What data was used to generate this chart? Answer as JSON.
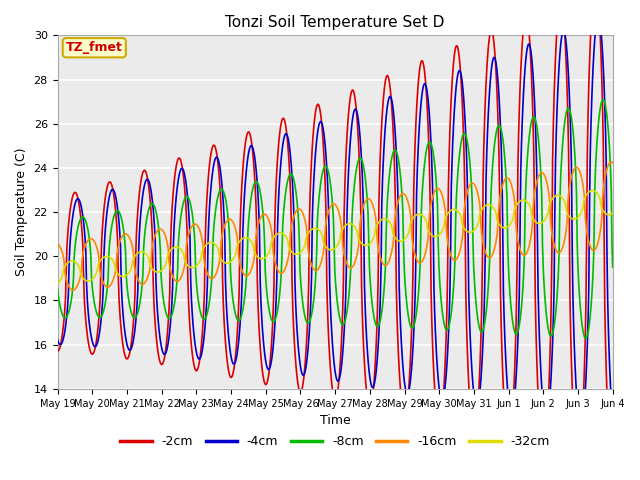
{
  "title": "Tonzi Soil Temperature Set D",
  "xlabel": "Time",
  "ylabel": "Soil Temperature (C)",
  "ylim": [
    14,
    30
  ],
  "yticks": [
    14,
    16,
    18,
    20,
    22,
    24,
    26,
    28,
    30
  ],
  "annotation_text": "TZ_fmet",
  "annotation_bg": "#ffffcc",
  "annotation_border": "#ccaa00",
  "annotation_text_color": "#cc0000",
  "line_colors": {
    "-2cm": "#dd0000",
    "-4cm": "#0000cc",
    "-8cm": "#00bb00",
    "-16cm": "#ff8800",
    "-32cm": "#dddd00"
  },
  "legend_labels": [
    "-2cm",
    "-4cm",
    "-8cm",
    "-16cm",
    "-32cm"
  ],
  "num_days": 16,
  "bg_color": "#ebebeb",
  "grid_color": "#ffffff",
  "linewidth": 1.2
}
